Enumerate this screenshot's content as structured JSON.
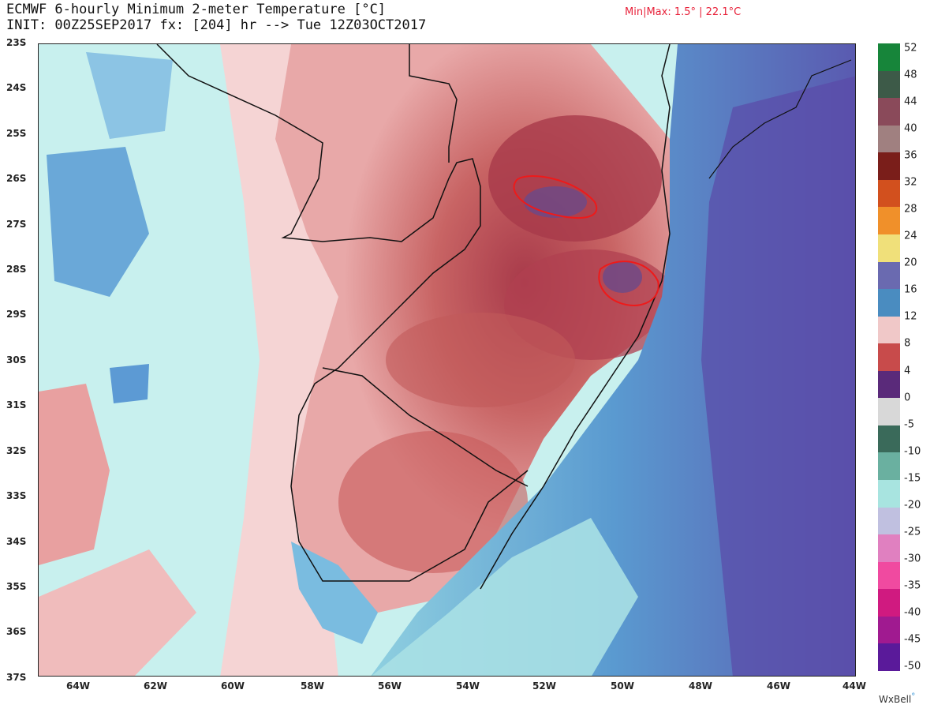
{
  "title": {
    "line1": "ECMWF 6-hourly Minimum 2-meter Temperature [°C]",
    "line2": "INIT: 00Z25SEP2017 fx: [204] hr --> Tue 12Z03OCT2017"
  },
  "minmax": "Min|Max: 1.5° | 22.1°C",
  "lat_labels": [
    "23S",
    "24S",
    "25S",
    "26S",
    "27S",
    "28S",
    "29S",
    "30S",
    "31S",
    "32S",
    "33S",
    "34S",
    "35S",
    "36S",
    "37S"
  ],
  "lon_labels": [
    "64W",
    "62W",
    "60W",
    "58W",
    "56W",
    "54W",
    "52W",
    "50W",
    "48W",
    "46W",
    "44W"
  ],
  "colorbar": {
    "labels": [
      "52",
      "48",
      "44",
      "40",
      "36",
      "32",
      "28",
      "24",
      "20",
      "16",
      "12",
      "8",
      "4",
      "0",
      "-5",
      "-10",
      "-15",
      "-20",
      "-25",
      "-30",
      "-35",
      "-40",
      "-45",
      "-50"
    ],
    "colors": [
      "#17853a",
      "#3d5a48",
      "#8a4a5a",
      "#a08080",
      "#7a1e1a",
      "#d2501e",
      "#f0902a",
      "#f0e07a",
      "#6a6ab0",
      "#4a8cc0",
      "#f0c8c8",
      "#c84b4b",
      "#5a2a7a",
      "#d8d8d8",
      "#3a6a5a",
      "#6ab0a0",
      "#a8e4e0",
      "#c0c0e0",
      "#e080c0",
      "#f04aa0",
      "#d01a80",
      "#a01a90",
      "#5a1a9a"
    ]
  },
  "annotations": [
    "red-circle-north",
    "red-circle-south"
  ],
  "brand": "WxBell"
}
